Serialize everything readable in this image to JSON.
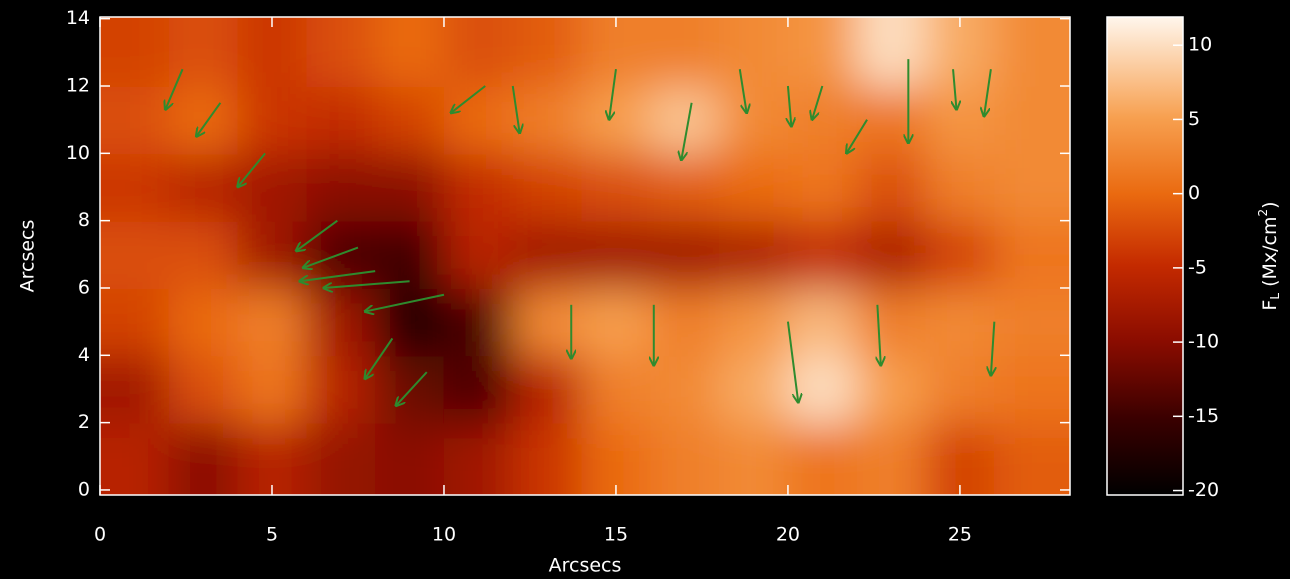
{
  "chart_data": {
    "type": "heatmap",
    "xlabel": "Arcsecs",
    "ylabel": "Arcsecs",
    "xlim": [
      0,
      28.2
    ],
    "ylim": [
      -0.15,
      14.05
    ],
    "xticks": [
      0,
      5,
      10,
      15,
      20,
      25
    ],
    "yticks": [
      0,
      2,
      4,
      6,
      8,
      10,
      12,
      14
    ],
    "x": [
      1,
      3,
      5,
      7,
      9,
      11,
      13,
      15,
      17,
      19,
      21,
      23,
      25,
      27
    ],
    "y": [
      1,
      3,
      5,
      7,
      9,
      11,
      13
    ],
    "z": [
      [
        -6,
        -10,
        -6,
        -9,
        -10,
        -8,
        -4,
        0,
        2,
        3,
        1,
        2,
        -3,
        -1
      ],
      [
        -8,
        -2,
        1,
        -6,
        -12,
        -14,
        -6,
        2,
        3,
        6,
        10,
        5,
        2,
        1
      ],
      [
        -3,
        0,
        2,
        -8,
        -18,
        -14,
        3,
        5,
        2,
        4,
        7,
        2,
        3,
        2
      ],
      [
        -2,
        -2,
        -8,
        -14,
        -15,
        -6,
        -8,
        -8,
        -8,
        -7,
        -5,
        -7,
        -3,
        1
      ],
      [
        -4,
        -6,
        -8,
        -10,
        -10,
        -5,
        -3,
        -2,
        -1,
        0,
        1,
        -2,
        2,
        3
      ],
      [
        -2,
        0,
        -4,
        -5,
        -3,
        0,
        2,
        5,
        8,
        3,
        2,
        1,
        4,
        3
      ],
      [
        -3,
        -2,
        -4,
        -2,
        0,
        -2,
        -1,
        2,
        2,
        3,
        4,
        10,
        6,
        3
      ]
    ],
    "zlim": [
      -20.3,
      11.9
    ],
    "zticks": [
      -20,
      -15,
      -10,
      -5,
      0,
      5,
      10
    ],
    "colorbar_label": {
      "symbol": "F",
      "subscript": "L",
      "unit": "(Mx/cm",
      "exponent": "2",
      "close": ")"
    },
    "vectors": {
      "color": "#2e8b2e",
      "x": [
        2.4,
        4.8,
        6.9,
        8.0,
        9.0,
        10.0,
        8.5,
        7.5,
        9.5,
        12.0,
        13.7,
        15.0,
        17.2,
        18.6,
        20.0,
        21.0,
        22.3,
        23.5,
        24.8,
        25.9,
        16.1,
        20.0,
        22.6,
        26.0,
        3.5,
        11.2
      ],
      "y": [
        12.5,
        10.0,
        8.0,
        6.5,
        6.2,
        5.8,
        4.5,
        7.2,
        3.5,
        12.0,
        5.5,
        12.5,
        11.5,
        12.5,
        12.0,
        12.0,
        11.0,
        12.8,
        12.5,
        12.5,
        5.5,
        5.0,
        5.5,
        5.0,
        11.5,
        12.0
      ],
      "u": [
        -0.5,
        -0.8,
        -1.2,
        -2.2,
        -2.5,
        -2.3,
        -0.8,
        -1.6,
        -0.9,
        0.2,
        0.0,
        -0.2,
        -0.3,
        0.2,
        0.1,
        -0.3,
        -0.6,
        0.0,
        0.1,
        -0.2,
        0.0,
        0.3,
        0.1,
        -0.1,
        -0.7,
        -1.0
      ],
      "v": [
        -1.2,
        -1.0,
        -0.9,
        -0.3,
        -0.2,
        -0.5,
        -1.2,
        -0.6,
        -1.0,
        -1.4,
        -1.6,
        -1.5,
        -1.7,
        -1.3,
        -1.2,
        -1.0,
        -1.0,
        -2.5,
        -1.2,
        -1.4,
        -1.8,
        -2.4,
        -1.8,
        -1.6,
        -1.0,
        -0.8
      ]
    }
  }
}
